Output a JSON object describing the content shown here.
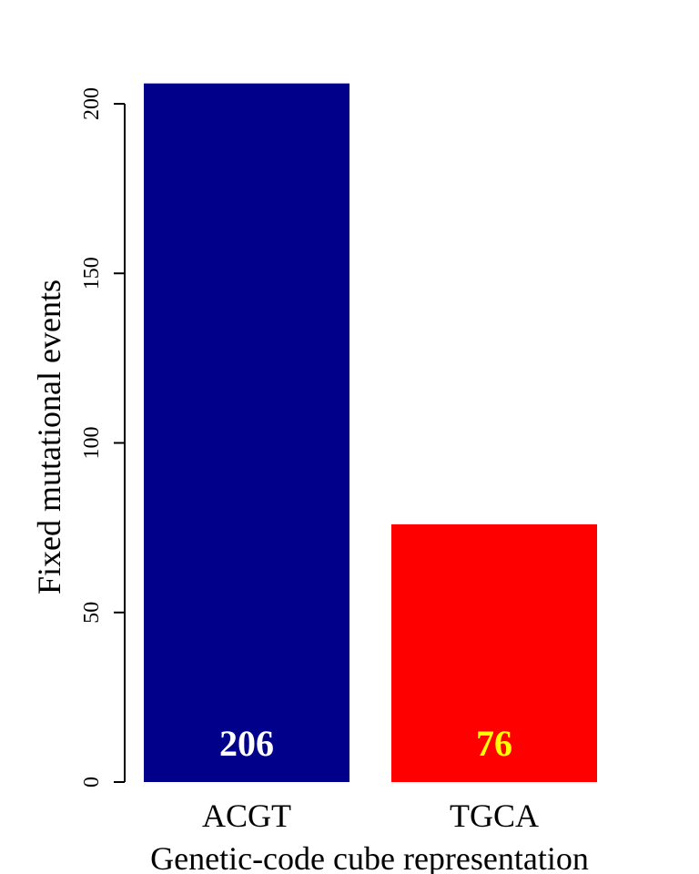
{
  "chart_data": {
    "type": "bar",
    "categories": [
      "ACGT",
      "TGCA"
    ],
    "values": [
      206,
      76
    ],
    "data_labels": [
      "206",
      "76"
    ],
    "bar_colors": [
      "#00008B",
      "#FF0000"
    ],
    "label_colors": [
      "#FFFFFF",
      "#FFFF00"
    ],
    "title": "",
    "xlabel": "Genetic-code cube representation",
    "ylabel": "Fixed mutational events",
    "ylim": [
      0,
      206
    ],
    "yticks": [
      0,
      50,
      100,
      150,
      200
    ],
    "ytick_labels": [
      "0",
      "50",
      "100",
      "150",
      "200"
    ],
    "grid": false,
    "legend": "none"
  }
}
